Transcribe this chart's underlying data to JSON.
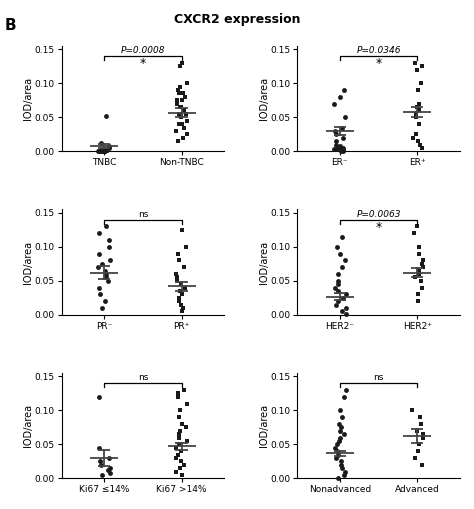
{
  "title": "CXCR2 expression",
  "panel_label": "B",
  "subplots": [
    {
      "groups": [
        "TNBC",
        "Non-TNBC"
      ],
      "means": [
        0.008,
        0.057
      ],
      "sems": [
        0.003,
        0.007
      ],
      "sig_text": "P=0.0008",
      "sig_star": "*",
      "data": [
        [
          0.001,
          0.002,
          0.001,
          0.001,
          0.005,
          0.008,
          0.001,
          0.002,
          0.001,
          0.001,
          0.001,
          0.001,
          0.052,
          0.012,
          0.002
        ],
        [
          0.02,
          0.03,
          0.04,
          0.04,
          0.05,
          0.055,
          0.06,
          0.065,
          0.07,
          0.075,
          0.08,
          0.085,
          0.09,
          0.095,
          0.1,
          0.025,
          0.035,
          0.045,
          0.055,
          0.065,
          0.075,
          0.085,
          0.13,
          0.125,
          0.015
        ]
      ],
      "group1_marker": "o",
      "group2_marker": "s"
    },
    {
      "groups": [
        "ER⁻",
        "ER⁺"
      ],
      "means": [
        0.03,
        0.058
      ],
      "sems": [
        0.006,
        0.007
      ],
      "sig_text": "P=0.0346",
      "sig_star": "*",
      "data": [
        [
          0.001,
          0.003,
          0.005,
          0.005,
          0.008,
          0.01,
          0.015,
          0.02,
          0.025,
          0.03,
          0.035,
          0.05,
          0.07,
          0.08,
          0.09,
          0.001,
          0.002,
          0.003
        ],
        [
          0.005,
          0.01,
          0.015,
          0.02,
          0.025,
          0.04,
          0.05,
          0.055,
          0.06,
          0.065,
          0.07,
          0.09,
          0.1,
          0.12,
          0.125,
          0.13
        ]
      ],
      "group1_marker": "o",
      "group2_marker": "s"
    },
    {
      "groups": [
        "PR⁻",
        "PR⁺"
      ],
      "means": [
        0.062,
        0.042
      ],
      "sems": [
        0.01,
        0.007
      ],
      "sig_text": "ns",
      "sig_star": null,
      "data": [
        [
          0.01,
          0.02,
          0.03,
          0.04,
          0.05,
          0.055,
          0.06,
          0.065,
          0.07,
          0.075,
          0.08,
          0.09,
          0.1,
          0.11,
          0.12,
          0.13
        ],
        [
          0.005,
          0.01,
          0.015,
          0.02,
          0.025,
          0.03,
          0.035,
          0.04,
          0.045,
          0.05,
          0.055,
          0.06,
          0.07,
          0.08,
          0.09,
          0.1,
          0.125
        ]
      ],
      "group1_marker": "o",
      "group2_marker": "s"
    },
    {
      "groups": [
        "HER2⁻",
        "HER2⁺"
      ],
      "means": [
        0.027,
        0.062
      ],
      "sems": [
        0.005,
        0.007
      ],
      "sig_text": "P=0.0063",
      "sig_star": "*",
      "data": [
        [
          0.001,
          0.005,
          0.01,
          0.015,
          0.02,
          0.025,
          0.03,
          0.035,
          0.04,
          0.045,
          0.05,
          0.06,
          0.07,
          0.08,
          0.09,
          0.1,
          0.115
        ],
        [
          0.02,
          0.03,
          0.04,
          0.05,
          0.055,
          0.06,
          0.065,
          0.07,
          0.075,
          0.08,
          0.09,
          0.1,
          0.12,
          0.13
        ]
      ],
      "group1_marker": "o",
      "group2_marker": "s"
    },
    {
      "groups": [
        "Ki67 ≤14%",
        "Ki67 >14%"
      ],
      "means": [
        0.03,
        0.047
      ],
      "sems": [
        0.012,
        0.005
      ],
      "sig_text": "ns",
      "sig_star": null,
      "data": [
        [
          0.005,
          0.008,
          0.012,
          0.015,
          0.02,
          0.025,
          0.03,
          0.045,
          0.12
        ],
        [
          0.005,
          0.01,
          0.015,
          0.02,
          0.025,
          0.03,
          0.035,
          0.04,
          0.045,
          0.05,
          0.055,
          0.06,
          0.065,
          0.07,
          0.075,
          0.08,
          0.09,
          0.1,
          0.11,
          0.12,
          0.125,
          0.13
        ]
      ],
      "group1_marker": "o",
      "group2_marker": "s"
    },
    {
      "groups": [
        "Nonadvanced",
        "Advanced"
      ],
      "means": [
        0.037,
        0.062
      ],
      "sems": [
        0.004,
        0.01
      ],
      "sig_text": "ns",
      "sig_star": null,
      "data": [
        [
          0.001,
          0.005,
          0.01,
          0.015,
          0.02,
          0.025,
          0.03,
          0.035,
          0.04,
          0.045,
          0.05,
          0.055,
          0.06,
          0.065,
          0.07,
          0.075,
          0.08,
          0.09,
          0.1,
          0.12,
          0.13
        ],
        [
          0.02,
          0.03,
          0.04,
          0.05,
          0.06,
          0.065,
          0.07,
          0.08,
          0.09,
          0.1
        ]
      ],
      "group1_marker": "o",
      "group2_marker": "s"
    }
  ],
  "ylim": [
    0,
    0.155
  ],
  "yticks": [
    0.0,
    0.05,
    0.1,
    0.15
  ],
  "ylabel": "IOD/area",
  "marker_color": "#1a1a1a",
  "marker_size": 3.5,
  "errorbar_color": "#444444",
  "background_color": "#ffffff",
  "jitter_scale": 0.08
}
